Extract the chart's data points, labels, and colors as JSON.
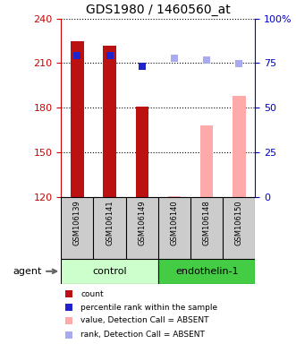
{
  "title": "GDS1980 / 1460560_at",
  "samples": [
    "GSM106139",
    "GSM106141",
    "GSM106149",
    "GSM106140",
    "GSM106148",
    "GSM106150"
  ],
  "ylim_left": [
    120,
    240
  ],
  "ylim_right": [
    0,
    100
  ],
  "yticks_left": [
    120,
    150,
    180,
    210,
    240
  ],
  "yticks_right": [
    0,
    25,
    50,
    75,
    100
  ],
  "bar_values": [
    225.0,
    222.0,
    181.0,
    121.0,
    168.0,
    188.0
  ],
  "bar_colors": [
    "#bb1111",
    "#bb1111",
    "#bb1111",
    "#ffaaaa",
    "#ffaaaa",
    "#ffaaaa"
  ],
  "bar_width": 0.4,
  "rank_values": [
    215.0,
    215.0,
    208.0,
    213.5,
    212.0,
    209.5
  ],
  "rank_colors": [
    "#2222cc",
    "#2222cc",
    "#2222cc",
    "#aaaaee",
    "#aaaaee",
    "#aaaaee"
  ],
  "rank_marker": "s",
  "rank_size": 35,
  "control_color": "#ccffcc",
  "endothelin_color": "#44cc44",
  "legend_items": [
    {
      "label": "count",
      "color": "#bb1111"
    },
    {
      "label": "percentile rank within the sample",
      "color": "#2222cc"
    },
    {
      "label": "value, Detection Call = ABSENT",
      "color": "#ffaaaa"
    },
    {
      "label": "rank, Detection Call = ABSENT",
      "color": "#aaaaee"
    }
  ],
  "grid_color": "black",
  "grid_style": "dotted",
  "left_axis_color": "#cc0000",
  "right_axis_color": "#0000cc",
  "bg_plot": "white",
  "bg_sample": "#cccccc"
}
